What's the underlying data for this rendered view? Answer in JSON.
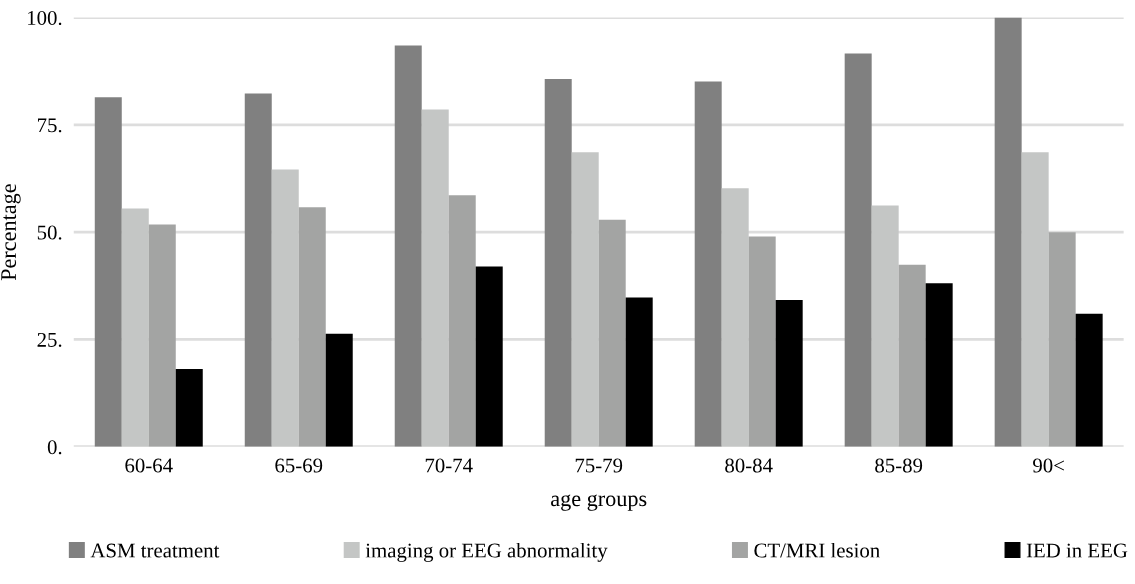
{
  "chart_data": {
    "type": "bar",
    "xlabel": "age groups",
    "ylabel": "Percentage",
    "categories": [
      "60-64",
      "65-69",
      "70-74",
      "75-79",
      "80-84",
      "85-89",
      "90<"
    ],
    "series": [
      {
        "name": "ASM treatment",
        "color": "#808080",
        "values": [
          81.4,
          82.3,
          93.5,
          85.7,
          85.1,
          91.6,
          100
        ]
      },
      {
        "name": "imaging or EEG abnormality",
        "color": "#c4c6c5",
        "values": [
          55.5,
          64.6,
          78.6,
          68.6,
          60.2,
          56.2,
          68.6
        ]
      },
      {
        "name": "CT/MRI lesion",
        "color": "#a3a4a3",
        "values": [
          51.8,
          55.8,
          58.6,
          52.9,
          49.0,
          42.4,
          50
        ]
      },
      {
        "name": "IED in EEG",
        "color": "#000000",
        "values": [
          18.1,
          26.3,
          42.0,
          34.8,
          34.2,
          38.1,
          31.0
        ]
      }
    ],
    "ylim": [
      0,
      100
    ],
    "yticks": [
      {
        "value": 0,
        "label": "0."
      },
      {
        "value": 25,
        "label": "25."
      },
      {
        "value": 50,
        "label": "50."
      },
      {
        "value": 75,
        "label": "75."
      },
      {
        "value": 100,
        "label": "100."
      }
    ],
    "grid": "y",
    "legend": "bottom"
  }
}
